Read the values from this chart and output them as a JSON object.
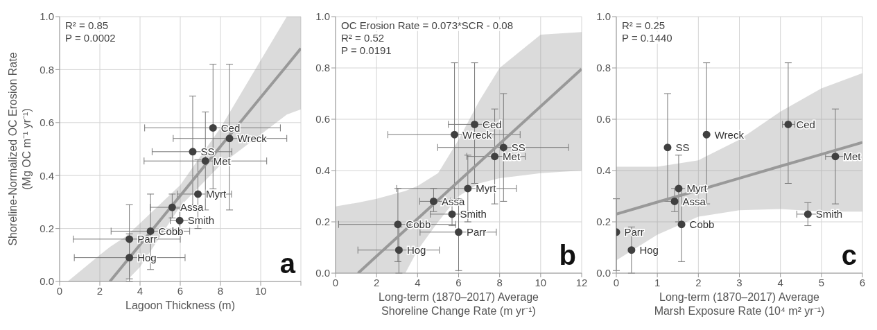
{
  "chart_data": [
    {
      "type": "scatter",
      "ylabel": "Shoreline-Normalized OC Erosion Rate\n(Mg OC m⁻¹ yr⁻¹)",
      "xlabel": "Lagoon Thickness (m)",
      "xlim": [
        0,
        12
      ],
      "xticks": [
        0,
        2,
        4,
        6,
        8,
        10,
        {
          "value": 12,
          "label": null
        }
      ],
      "ylim": [
        0,
        1
      ],
      "yticks": [
        {
          "value": 0,
          "label": "0.0"
        },
        {
          "value": 0.2,
          "label": "0.2"
        },
        {
          "value": 0.4,
          "label": "0.4"
        },
        {
          "value": 0.6,
          "label": "0.6"
        },
        {
          "value": 0.8,
          "label": "0.8"
        },
        {
          "value": 1,
          "label": "1.0"
        }
      ],
      "grid": true,
      "marker": "circle",
      "tick_labels": "xy",
      "annotations": [
        "R² = 0.85",
        "P = 0.0002",
        "a"
      ],
      "series": [
        {
          "color": "#404040",
          "x": [
            7.63,
            8.45,
            6.62,
            7.25,
            6.88,
            5.6,
            5.97,
            4.52,
            3.47,
            3.47
          ],
          "values": [
            0.58,
            0.54,
            0.49,
            0.455,
            0.33,
            0.28,
            0.23,
            0.19,
            0.16,
            0.09
          ],
          "value_labels": [
            "Ced",
            "Wreck",
            "SS",
            "Met",
            "Myrt",
            "Assa",
            "Smith",
            "Cobb",
            "Parr",
            "Hog"
          ],
          "errors": [
            [
              0.35,
              0.82
            ],
            [
              0.27,
              0.82
            ],
            [
              0.28,
              0.7
            ],
            [
              0.27,
              0.64
            ],
            [
              0.2,
              0.46
            ],
            [
              0.24,
              0.33
            ],
            [
              0.185,
              0.275
            ],
            [
              0.045,
              0.33
            ],
            [
              0.01,
              0.29
            ],
            [
              0,
              0.18
            ]
          ],
          "xerrors": [
            [
              4.23,
              10.98
            ],
            [
              5.65,
              11.3
            ],
            [
              4.6,
              8.57
            ],
            [
              4.2,
              10.3
            ],
            [
              5.85,
              8.55
            ],
            [
              4.5,
              6.6
            ],
            [
              5.5,
              6.6
            ],
            [
              2.56,
              6.47
            ],
            [
              0.68,
              6
            ],
            [
              0.73,
              6.24
            ]
          ]
        },
        {
          "type": "line",
          "marker": "none",
          "color": "#999999",
          "x": [
            0.4,
            2,
            2.5,
            3.3,
            4,
            6,
            8,
            10,
            11.3,
            12
          ],
          "values": [
            null,
            null,
            0,
            0.074,
            0.139,
            0.324,
            0.51,
            0.695,
            0.815,
            0.88
          ],
          "lower": [
            0,
            0,
            0,
            0,
            0.055,
            0.284,
            0.44,
            0.555,
            0.63,
            0.65
          ],
          "upper": [
            0,
            0.1,
            0.13,
            0.17,
            0.22,
            0.364,
            0.58,
            0.835,
            1,
            1
          ]
        }
      ]
    },
    {
      "type": "scatter",
      "xlabel": "Long-term (1870–2017) Average\nShoreline Change Rate (m yr⁻¹)",
      "xlim": [
        0,
        12
      ],
      "xticks": [
        0,
        2,
        4,
        6,
        8,
        10,
        {
          "value": 12,
          "label": "12"
        }
      ],
      "ylim": [
        0,
        1
      ],
      "yticks": [
        {
          "value": 0,
          "label": "0.0"
        },
        {
          "value": 0.2,
          "label": "0.2"
        },
        {
          "value": 0.4,
          "label": "0.4"
        },
        {
          "value": 0.6,
          "label": "0.6"
        },
        {
          "value": 0.8,
          "label": "0.8"
        },
        {
          "value": 1,
          "label": "1.0"
        }
      ],
      "grid": true,
      "marker": "circle",
      "annotations": [
        "OC Erosion Rate = 0.073*SCR - 0.08",
        "R² = 0.52",
        "P = 0.0191",
        "b"
      ],
      "series": [
        {
          "color": "#404040",
          "x": [
            6.78,
            5.8,
            8.19,
            7.76,
            6.45,
            4.78,
            5.68,
            3.04,
            6,
            3.09
          ],
          "values": [
            0.58,
            0.54,
            0.49,
            0.455,
            0.33,
            0.28,
            0.23,
            0.19,
            0.16,
            0.09
          ],
          "value_labels": [
            "Ced",
            "Wreck",
            "SS",
            "Met",
            "Myrt",
            "Assa",
            "Smith",
            "Cobb",
            "Parr",
            "Hog"
          ],
          "errors": [
            [
              0.35,
              0.82
            ],
            [
              0.27,
              0.82
            ],
            [
              0.28,
              0.7
            ],
            [
              0.27,
              0.64
            ],
            [
              0.2,
              0.46
            ],
            [
              0.24,
              0.33
            ],
            [
              0.185,
              0.275
            ],
            [
              0.045,
              0.33
            ],
            [
              0.01,
              0.29
            ],
            [
              0,
              0.18
            ]
          ],
          "xerrors": [
            [
              5.5,
              8.1
            ],
            [
              2.55,
              9
            ],
            [
              4.98,
              11.36
            ],
            [
              6.4,
              9.25
            ],
            [
              2.98,
              8.82
            ],
            [
              4.1,
              5.6
            ],
            [
              4.62,
              6.68
            ],
            [
              0.15,
              5.86
            ],
            [
              4.12,
              7.84
            ],
            [
              1.09,
              5.06
            ]
          ]
        },
        {
          "type": "line",
          "marker": "none",
          "color": "#999999",
          "x": [
            0,
            1.1,
            2,
            3.4,
            4,
            5,
            6,
            7,
            8,
            10,
            12
          ],
          "values": [
            null,
            0,
            0.066,
            0.168,
            0.212,
            0.285,
            0.358,
            0.431,
            0.504,
            0.65,
            0.796
          ],
          "lower": [
            0,
            0,
            0,
            0,
            0.09,
            0.2,
            0.3,
            0.35,
            0.37,
            0.39,
            0.4
          ],
          "upper": [
            0.26,
            0.275,
            0.29,
            0.32,
            0.34,
            0.39,
            0.52,
            0.67,
            0.8,
            0.93,
            0.94
          ]
        }
      ]
    },
    {
      "type": "scatter",
      "xlabel": "Long-term (1870–2017) Average\nMarsh Exposure Rate (10⁴ m² yr⁻¹)",
      "xlim": [
        0,
        6
      ],
      "xticks": [
        0,
        1,
        2,
        3,
        4,
        5,
        6
      ],
      "ylim": [
        0,
        1
      ],
      "yticks": [
        {
          "value": 0,
          "label": "0.0"
        },
        {
          "value": 0.2,
          "label": "0.2"
        },
        {
          "value": 0.4,
          "label": "0.4"
        },
        {
          "value": 0.6,
          "label": "0.6"
        },
        {
          "value": 0.8,
          "label": "0.8"
        },
        {
          "value": 1,
          "label": "1.0"
        }
      ],
      "grid": true,
      "marker": "circle",
      "annotations": [
        "R² = 0.25",
        "P = 0.1440",
        "c"
      ],
      "series": [
        {
          "color": "#404040",
          "x": [
            4.19,
            2.2,
            1.25,
            5.34,
            1.52,
            1.42,
            4.67,
            1.59,
            0,
            0.37
          ],
          "values": [
            0.58,
            0.54,
            0.49,
            0.455,
            0.33,
            0.28,
            0.23,
            0.19,
            0.16,
            0.09
          ],
          "value_labels": [
            "Ced",
            "Wreck",
            "SS",
            "Met",
            "Myrt",
            "Assa",
            "Smith",
            "Cobb",
            "Parr",
            "Hog"
          ],
          "errors": [
            [
              0.35,
              0.82
            ],
            [
              0.27,
              0.82
            ],
            [
              0.28,
              0.7
            ],
            [
              0.27,
              0.64
            ],
            [
              0.2,
              0.46
            ],
            [
              0.24,
              0.33
            ],
            [
              0.185,
              0.275
            ],
            [
              0.045,
              0.33
            ],
            [
              0.01,
              0.29
            ],
            [
              0,
              0.18
            ]
          ],
          "xerrors": [
            [
              4.05,
              4.35
            ],
            null,
            null,
            [
              5.1,
              5.6
            ],
            null,
            null,
            [
              4.4,
              4.95
            ],
            null,
            null,
            null
          ]
        },
        {
          "type": "line",
          "marker": "none",
          "color": "#999999",
          "x": [
            0,
            1,
            2,
            3,
            4,
            5,
            6
          ],
          "values": [
            0.23,
            0.277,
            0.323,
            0.37,
            0.417,
            0.463,
            0.51
          ],
          "lower": [
            0.05,
            0.15,
            0.22,
            0.245,
            0.25,
            0.24,
            0.24
          ],
          "upper": [
            0.415,
            0.415,
            0.44,
            0.52,
            0.63,
            0.72,
            0.78
          ]
        }
      ]
    }
  ]
}
